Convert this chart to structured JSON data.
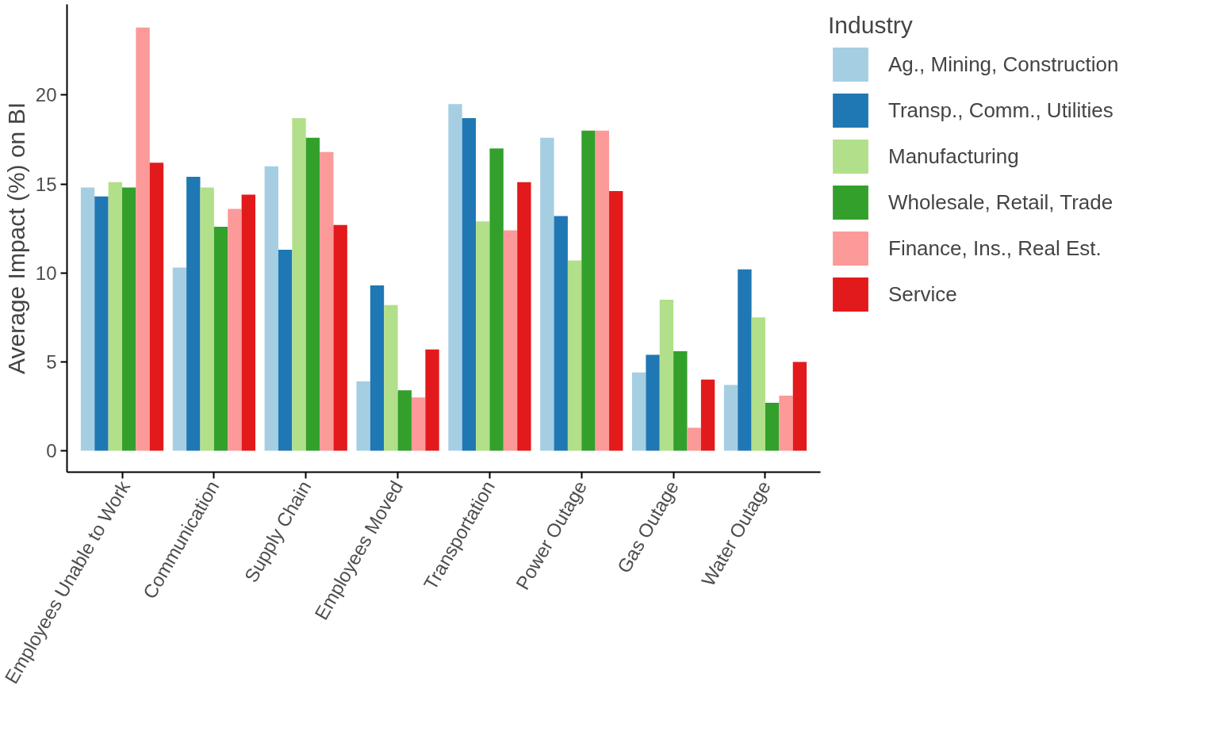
{
  "chart_data": {
    "type": "bar",
    "ylabel": "Average Impact (%) on BI",
    "legend_title": "Industry",
    "legend": "right",
    "grid": false,
    "categories": [
      "Employees Unable to Work",
      "Communication",
      "Supply Chain",
      "Employees Moved",
      "Transportation",
      "Power Outage",
      "Gas Outage",
      "Water Outage"
    ],
    "ylim": [
      -1.2,
      25.1
    ],
    "yticks": [
      0,
      5,
      10,
      15,
      20
    ],
    "series": [
      {
        "name": "Ag., Mining, Construction",
        "color": "#a6cee3",
        "values": [
          14.8,
          10.3,
          16.0,
          3.9,
          19.5,
          17.6,
          4.4,
          3.7
        ]
      },
      {
        "name": "Transp., Comm., Utilities",
        "color": "#1f78b4",
        "values": [
          14.3,
          15.4,
          11.3,
          9.3,
          18.7,
          13.2,
          5.4,
          10.2
        ]
      },
      {
        "name": "Manufacturing",
        "color": "#b2df8a",
        "values": [
          15.1,
          14.8,
          18.7,
          8.2,
          12.9,
          10.7,
          8.5,
          7.5
        ]
      },
      {
        "name": "Wholesale, Retail, Trade",
        "color": "#33a02c",
        "values": [
          14.8,
          12.6,
          17.6,
          3.4,
          17.0,
          18.0,
          5.6,
          2.7
        ]
      },
      {
        "name": "Finance, Ins., Real Est.",
        "color": "#fb9a99",
        "values": [
          23.8,
          13.6,
          16.8,
          3.0,
          12.4,
          18.0,
          1.3,
          3.1
        ]
      },
      {
        "name": "Service",
        "color": "#e31a1c",
        "values": [
          16.2,
          14.4,
          12.7,
          5.7,
          15.1,
          14.6,
          4.0,
          5.0
        ]
      }
    ]
  }
}
